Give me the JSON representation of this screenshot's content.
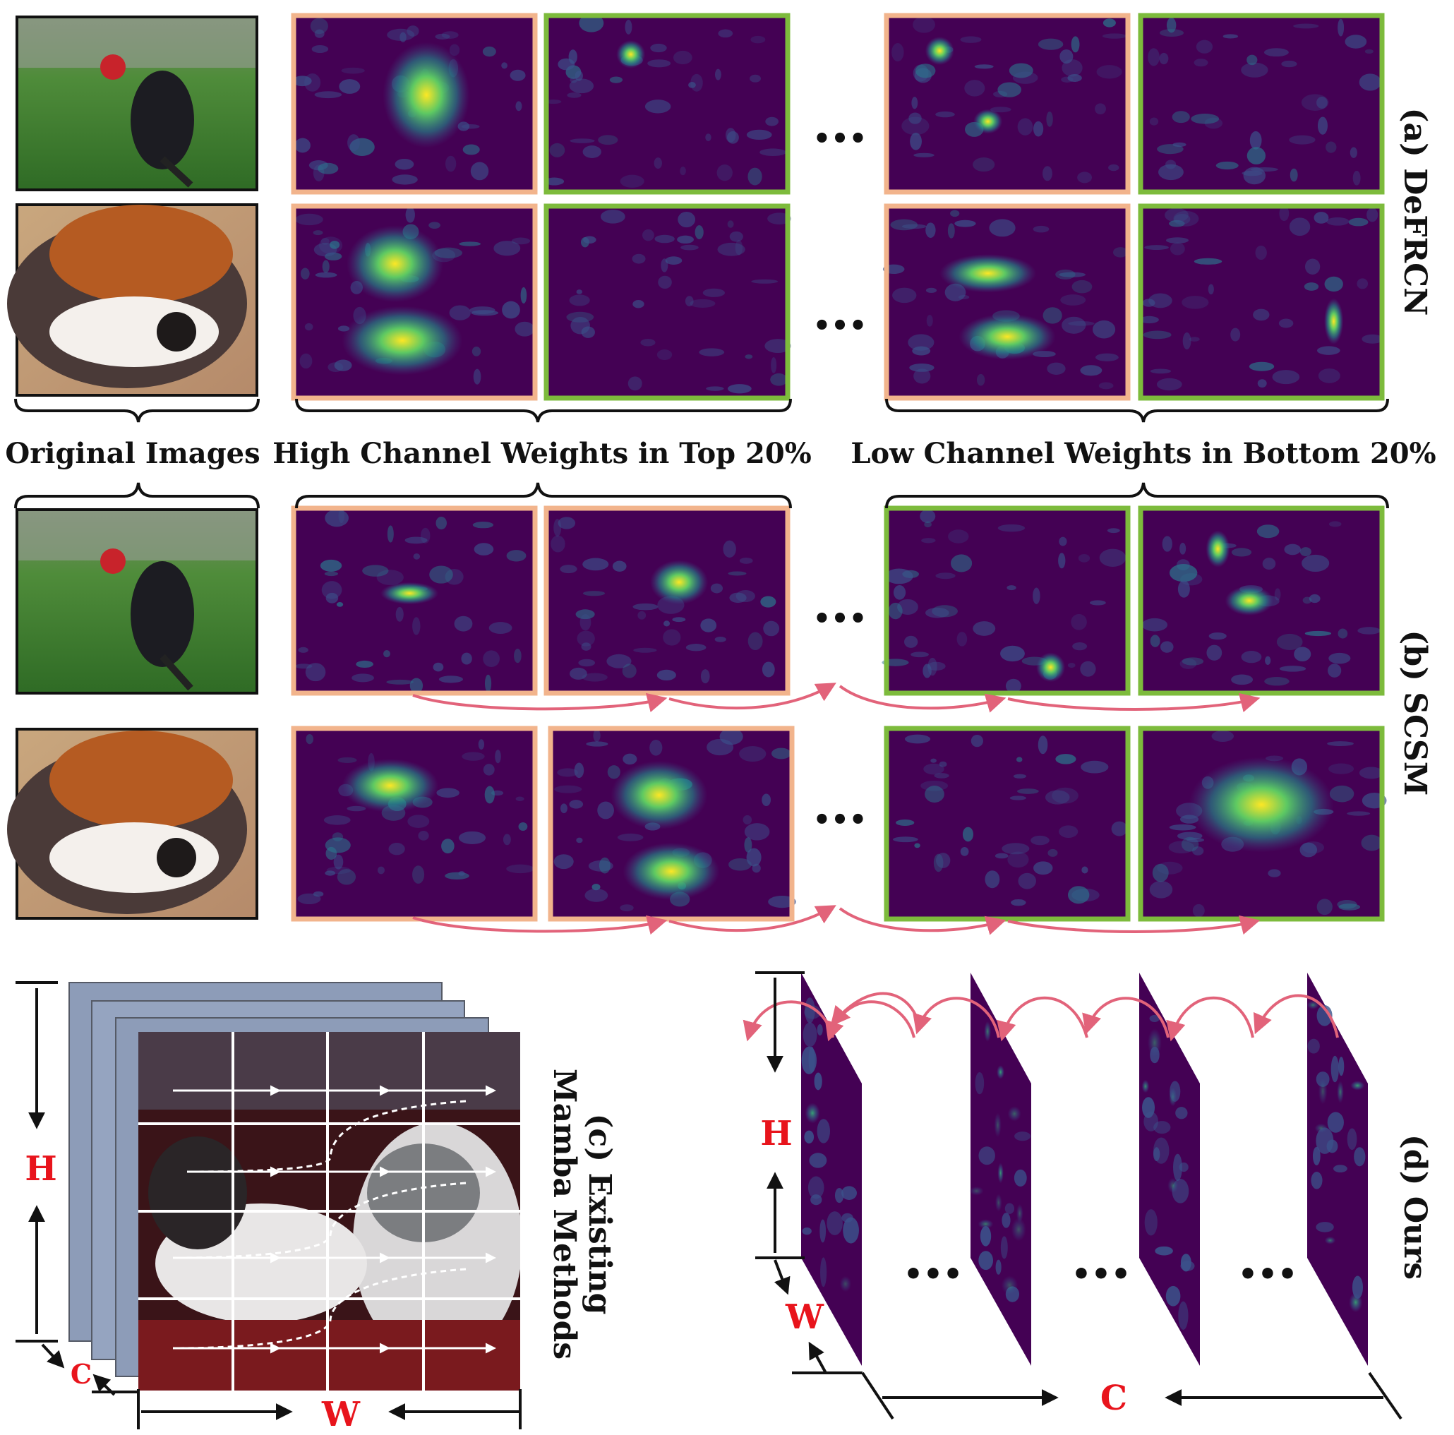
{
  "captions": {
    "original": "Original Images",
    "high": "High Channel Weights in Top 20%",
    "low": "Low Channel Weights in Bottom 20%"
  },
  "panel_labels": {
    "a": "(a) DeFRCN",
    "b": "(b) SCSM",
    "c_line1": "(c) Existing",
    "c_line2": "Mamba Methods",
    "d": "(d) Ours"
  },
  "axis_labels": {
    "c_h": "H",
    "c_c": "C",
    "c_w": "W",
    "d_h": "H",
    "d_w": "W",
    "d_c": "C"
  },
  "ellipsis": "•••",
  "colors": {
    "high_border": "#f2b48c",
    "low_border": "#7dbb3c",
    "arrow": "#e2637a",
    "axis_text": "#e8141c",
    "heatmap_base": "#440154",
    "heatmap_mid": "#3b528b",
    "heatmap_hot": "#b5de2b",
    "channel_gray": "#8d9cb8"
  },
  "images": {
    "bird": "bird-photo",
    "cats": "cats-photo",
    "mamba": "cat-grid-photo"
  }
}
